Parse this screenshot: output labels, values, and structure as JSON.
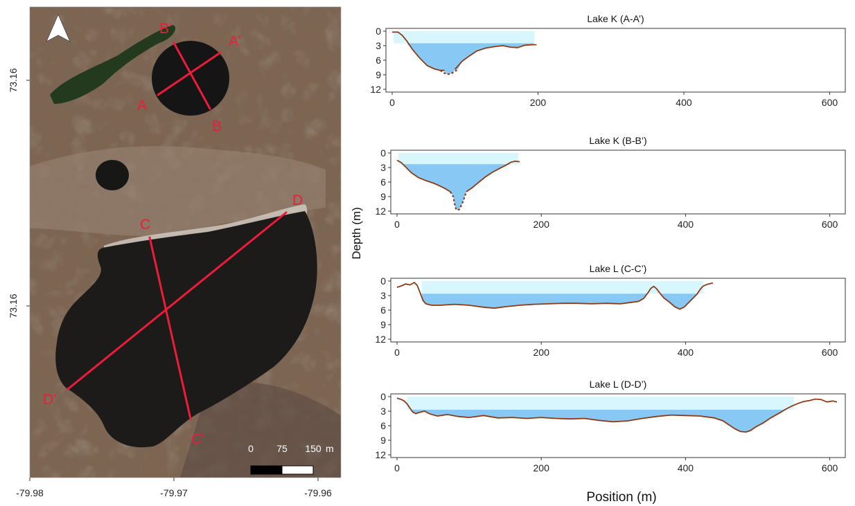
{
  "colors": {
    "upper_water": "#d8f6fd",
    "lower_water": "#88c8f5",
    "bed_line": "#8b3a13",
    "transect": "#ec1c3a",
    "map_dark_water": "#1d1b19",
    "map_land": "#7e6552"
  },
  "map": {
    "north_arrow": "north-arrow-icon",
    "lat_labels": [
      "73.16",
      "73.16"
    ],
    "lon_labels": [
      "-79.98",
      "-79.97",
      "-79.96"
    ],
    "transect_labels": [
      "A",
      "A'",
      "B",
      "B'",
      "C",
      "C'",
      "D",
      "D'"
    ],
    "scale_bar": {
      "ticks": [
        "0",
        "75",
        "150"
      ],
      "unit": "m"
    }
  },
  "axes": {
    "ylabel": "Depth (m)",
    "xlabel": "Position (m)"
  },
  "chart_data": [
    {
      "type": "area",
      "title": "Lake K (A-A’)",
      "xlim": [
        0,
        610
      ],
      "ylim": [
        12,
        0
      ],
      "xticks": [
        "0",
        "200",
        "400",
        "600"
      ],
      "yticks": [
        "0",
        "3",
        "6",
        "9",
        "12"
      ],
      "water_extent": [
        2,
        195
      ],
      "lower_water_top": 2.5,
      "bed": {
        "x": [
          0,
          8,
          14,
          20,
          28,
          38,
          48,
          58,
          66,
          72
        ],
        "y": [
          0.2,
          0.2,
          0.9,
          2.0,
          3.8,
          5.6,
          7.1,
          7.8,
          8.1,
          8.1
        ]
      },
      "bed_right": {
        "x": [
          86,
          96,
          106,
          116,
          128,
          140,
          152,
          162,
          172,
          182,
          192,
          198
        ],
        "y": [
          7.9,
          6.2,
          5.1,
          4.1,
          3.5,
          3.2,
          3.0,
          3.3,
          3.4,
          2.9,
          2.8,
          2.8
        ]
      },
      "dashed": {
        "x": [
          66,
          72,
          76,
          80,
          84,
          90
        ],
        "y": [
          8.1,
          8.7,
          8.9,
          8.8,
          8.5,
          7.9
        ]
      }
    },
    {
      "type": "area",
      "title": "Lake K (B-B’)",
      "xlim": [
        0,
        610
      ],
      "ylim": [
        12,
        0
      ],
      "xticks": [
        "0",
        "200",
        "400",
        "600"
      ],
      "yticks": [
        "0",
        "3",
        "6",
        "9",
        "12"
      ],
      "water_extent": [
        2,
        168
      ],
      "lower_water_top": 2.3,
      "bed": {
        "x": [
          0,
          6,
          12,
          20,
          30,
          40,
          50,
          58,
          66,
          74
        ],
        "y": [
          1.5,
          2.0,
          2.9,
          4.1,
          5.1,
          5.7,
          6.2,
          6.7,
          7.3,
          8.0
        ]
      },
      "bed_right": {
        "x": [
          96,
          104,
          112,
          122,
          132,
          142,
          150,
          158,
          164,
          170
        ],
        "y": [
          8.0,
          7.2,
          6.2,
          5.0,
          4.0,
          3.2,
          2.6,
          1.9,
          1.7,
          1.8
        ]
      },
      "dashed": {
        "x": [
          74,
          78,
          80,
          82,
          86,
          90,
          94,
          96
        ],
        "y": [
          8.0,
          9.0,
          10.6,
          11.7,
          11.7,
          10.6,
          9.0,
          8.0
        ]
      }
    },
    {
      "type": "area",
      "title": "Lake L (C-C’)",
      "xlim": [
        0,
        610
      ],
      "ylim": [
        12,
        0
      ],
      "xticks": [
        "0",
        "200",
        "400",
        "600"
      ],
      "yticks": [
        "0",
        "3",
        "6",
        "9",
        "12"
      ],
      "water_extent": [
        34,
        425
      ],
      "lower_water_top": 2.6,
      "bed": {
        "x": [
          0,
          6,
          12,
          18,
          24,
          28,
          32,
          36,
          40,
          48,
          60,
          80,
          100,
          120,
          135,
          150,
          170,
          190,
          210,
          230,
          250,
          270,
          290,
          310,
          325,
          335,
          342,
          348,
          352,
          356,
          360,
          365,
          370,
          378,
          385,
          392,
          398,
          404,
          410,
          416,
          420,
          424,
          428,
          432,
          438
        ],
        "y": [
          1.3,
          1.0,
          0.6,
          0.8,
          0.3,
          0.9,
          2.4,
          4.0,
          4.7,
          5.0,
          5.0,
          4.8,
          5.0,
          5.4,
          5.6,
          5.3,
          5.0,
          4.8,
          4.7,
          4.6,
          4.6,
          4.7,
          4.6,
          4.7,
          4.4,
          4.2,
          3.6,
          2.4,
          1.5,
          1.1,
          1.6,
          2.6,
          3.5,
          4.4,
          5.3,
          5.8,
          5.4,
          4.5,
          3.6,
          2.7,
          1.8,
          1.1,
          0.8,
          0.6,
          0.4
        ]
      }
    },
    {
      "type": "area",
      "title": "Lake L (D-D’)",
      "xlim": [
        0,
        610
      ],
      "ylim": [
        12,
        0
      ],
      "xticks": [
        "0",
        "200",
        "400",
        "600"
      ],
      "yticks": [
        "0",
        "3",
        "6",
        "9",
        "12"
      ],
      "water_extent": [
        14,
        550
      ],
      "lower_water_top": 2.7,
      "bed": {
        "x": [
          0,
          6,
          10,
          14,
          18,
          22,
          26,
          30,
          38,
          46,
          56,
          70,
          85,
          100,
          120,
          140,
          160,
          180,
          200,
          220,
          240,
          260,
          280,
          300,
          320,
          340,
          360,
          380,
          400,
          420,
          440,
          452,
          460,
          468,
          476,
          484,
          490,
          498,
          508,
          518,
          530,
          540,
          548,
          556,
          564,
          572,
          580,
          588,
          596,
          604,
          610
        ],
        "y": [
          0.3,
          0.6,
          0.9,
          1.5,
          2.4,
          3.2,
          3.5,
          3.3,
          3.0,
          3.6,
          4.0,
          3.7,
          4.1,
          4.3,
          3.9,
          4.4,
          4.3,
          4.5,
          4.3,
          4.5,
          4.6,
          4.5,
          4.9,
          5.2,
          5.0,
          4.5,
          4.1,
          3.8,
          3.9,
          4.0,
          4.4,
          5.0,
          5.8,
          6.6,
          7.2,
          7.3,
          7.0,
          6.2,
          5.4,
          4.4,
          3.4,
          2.5,
          1.9,
          1.4,
          1.0,
          0.8,
          0.5,
          0.6,
          1.1,
          0.9,
          1.1
        ]
      }
    }
  ]
}
